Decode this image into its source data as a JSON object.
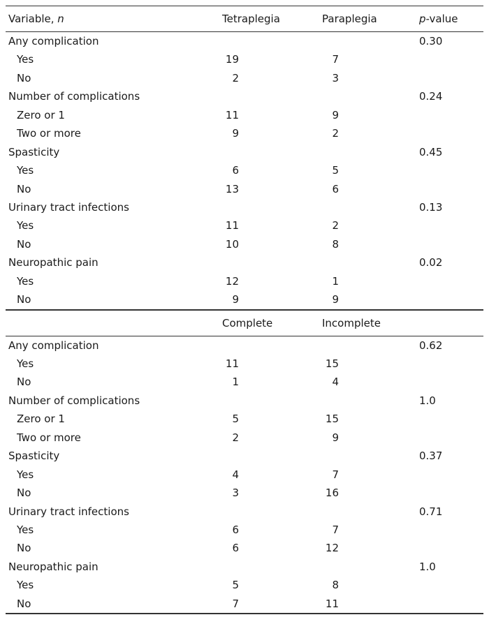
{
  "header": {
    "variable_label": "Variable, ",
    "variable_n": "n",
    "col_a": "Tetraplegia",
    "col_b": "Paraplegia",
    "p_italic": "p",
    "p_rest": "-value"
  },
  "section1": [
    {
      "label": "Any complication",
      "p": "0.30"
    },
    {
      "label": "Yes",
      "a": "19",
      "b": "7"
    },
    {
      "label": "No",
      "a": "2",
      "b": "3"
    },
    {
      "label": "Number of complications",
      "p": "0.24"
    },
    {
      "label": "Zero or 1",
      "a": "11",
      "b": "9"
    },
    {
      "label": "Two or more",
      "a": "9",
      "b": "2"
    },
    {
      "label": "Spasticity",
      "p": "0.45"
    },
    {
      "label": "Yes",
      "a": "6",
      "b": "5"
    },
    {
      "label": "No",
      "a": "13",
      "b": "6"
    },
    {
      "label": "Urinary tract infections",
      "p": "0.13"
    },
    {
      "label": "Yes",
      "a": "11",
      "b": "2"
    },
    {
      "label": "No",
      "a": "10",
      "b": "8"
    },
    {
      "label": "Neuropathic pain",
      "p": "0.02"
    },
    {
      "label": "Yes",
      "a": "12",
      "b": "1"
    },
    {
      "label": "No",
      "a": "9",
      "b": "9"
    }
  ],
  "header2": {
    "col_a": "Complete",
    "col_b": "Incomplete"
  },
  "section2": [
    {
      "label": "Any complication",
      "p": "0.62"
    },
    {
      "label": "Yes",
      "a": "11",
      "b": "15"
    },
    {
      "label": "No",
      "a": "1",
      "b": "4"
    },
    {
      "label": "Number of complications",
      "p": "1.0"
    },
    {
      "label": "Zero or 1",
      "a": "5",
      "b": "15"
    },
    {
      "label": "Two or more",
      "a": "2",
      "b": "9"
    },
    {
      "label": "Spasticity",
      "p": "0.37"
    },
    {
      "label": "Yes",
      "a": "4",
      "b": "7"
    },
    {
      "label": "No",
      "a": "3",
      "b": "16"
    },
    {
      "label": "Urinary tract infections",
      "p": "0.71"
    },
    {
      "label": "Yes",
      "a": "6",
      "b": "7"
    },
    {
      "label": "No",
      "a": "6",
      "b": "12"
    },
    {
      "label": "Neuropathic pain",
      "p": "1.0"
    },
    {
      "label": "Yes",
      "a": "5",
      "b": "8"
    },
    {
      "label": "No",
      "a": "7",
      "b": "11"
    }
  ]
}
